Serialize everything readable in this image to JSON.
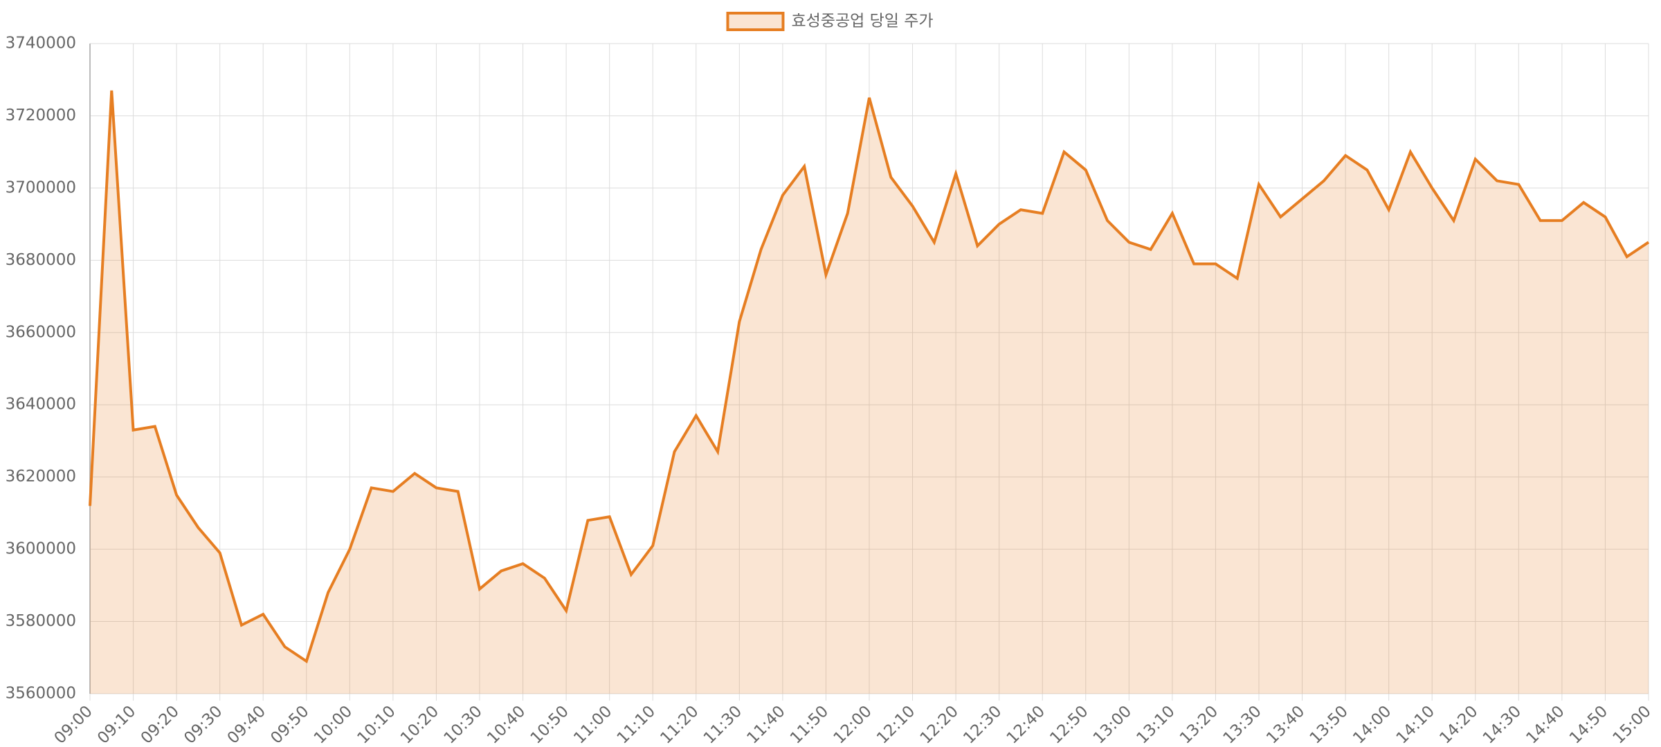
{
  "chart_data": {
    "type": "line",
    "legend": "top",
    "categories": [
      "09:00",
      null,
      "09:10",
      null,
      "09:20",
      null,
      "09:30",
      null,
      "09:40",
      null,
      "09:50",
      null,
      "10:00",
      null,
      "10:10",
      null,
      "10:20",
      null,
      "10:30",
      null,
      "10:40",
      null,
      "10:50",
      null,
      "11:00",
      null,
      "11:10",
      null,
      "11:20",
      null,
      "11:30",
      null,
      "11:40",
      null,
      "11:50",
      null,
      "12:00",
      null,
      "12:10",
      null,
      "12:20",
      null,
      "12:30",
      null,
      "12:40",
      null,
      "12:50",
      null,
      "13:00",
      null,
      "13:10",
      null,
      "13:20",
      null,
      "13:30",
      null,
      "13:40",
      null,
      "13:50",
      null,
      "14:00",
      null,
      "14:10",
      null,
      "14:20",
      null,
      "14:30",
      null,
      "14:40",
      null,
      "14:50",
      null,
      "15:00"
    ],
    "series": [
      {
        "name": "효성중공업 당일 주가",
        "color": "#e67e22",
        "fill": true,
        "values": [
          3612000,
          3727000,
          3633000,
          3634000,
          3615000,
          3606000,
          3599000,
          3579000,
          3582000,
          3573000,
          3569000,
          3588000,
          3600000,
          3617000,
          3616000,
          3621000,
          3617000,
          3616000,
          3589000,
          3594000,
          3596000,
          3592000,
          3583000,
          3608000,
          3609000,
          3593000,
          3601000,
          3627000,
          3637000,
          3627000,
          3663000,
          3683000,
          3698000,
          3706000,
          3676000,
          3693000,
          3725000,
          3703000,
          3695000,
          3685000,
          3704000,
          3684000,
          3690000,
          3694000,
          3693000,
          3710000,
          3705000,
          3691000,
          3685000,
          3683000,
          3693000,
          3679000,
          3679000,
          3675000,
          3701000,
          3692000,
          3697000,
          3702000,
          3709000,
          3705000,
          3694000,
          3710000,
          3700000,
          3691000,
          3708000,
          3702000,
          3701000,
          3691000,
          3691000,
          3696000,
          3692000,
          3681000,
          3685000
        ]
      }
    ],
    "ylim": [
      3560000,
      3740000
    ],
    "yticks": [
      3560000,
      3580000,
      3600000,
      3620000,
      3640000,
      3660000,
      3680000,
      3700000,
      3720000,
      3740000
    ],
    "grid": true
  }
}
